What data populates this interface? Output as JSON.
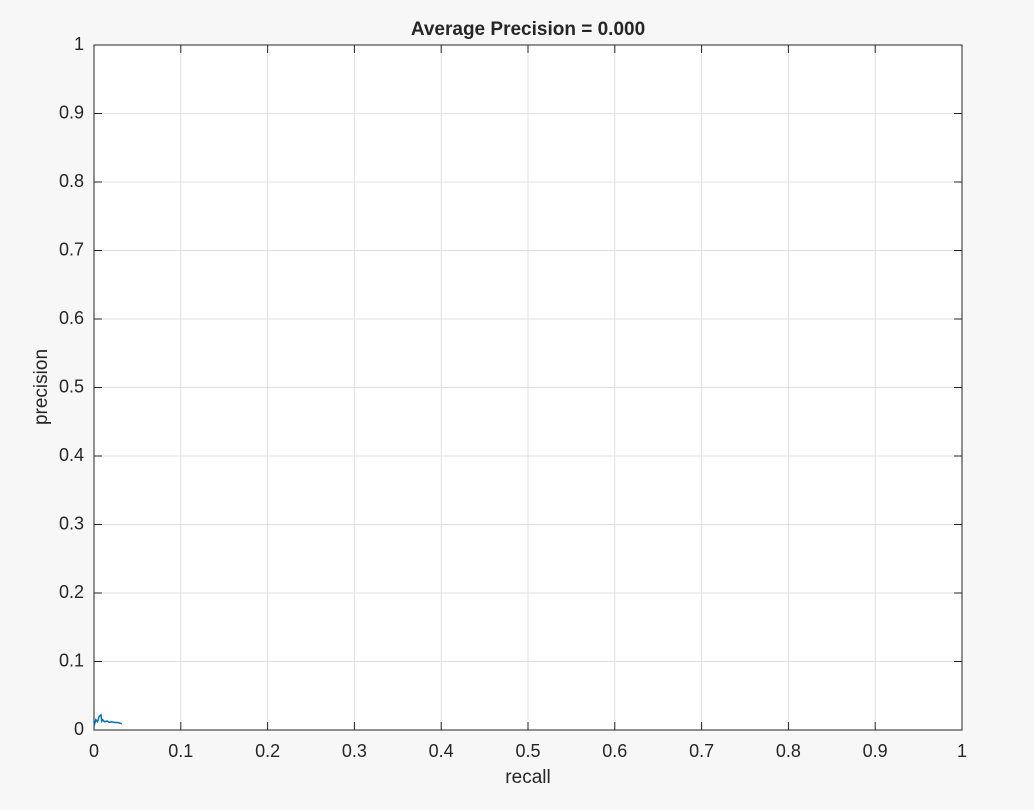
{
  "chart_data": {
    "type": "line",
    "title": "Average Precision = 0.000",
    "xlabel": "recall",
    "ylabel": "precision",
    "x": [
      0,
      0.002,
      0.004,
      0.006,
      0.008,
      0.009,
      0.01,
      0.012,
      0.015,
      0.018,
      0.02,
      0.024,
      0.027,
      0.03,
      0.032
    ],
    "series": [
      {
        "color": "#0072bd",
        "values": [
          0.005,
          0.015,
          0.012,
          0.02,
          0.022,
          0.013,
          0.015,
          0.012,
          0.013,
          0.011,
          0.012,
          0.011,
          0.011,
          0.01,
          0.009
        ]
      }
    ],
    "xlim": [
      0,
      1
    ],
    "ylim": [
      0,
      1
    ],
    "xticks": [
      0,
      0.1,
      0.2,
      0.3,
      0.4,
      0.5,
      0.6,
      0.7,
      0.8,
      0.9,
      1
    ],
    "yticks": [
      0,
      0.1,
      0.2,
      0.3,
      0.4,
      0.5,
      0.6,
      0.7,
      0.8,
      0.9,
      1
    ],
    "grid": true
  }
}
